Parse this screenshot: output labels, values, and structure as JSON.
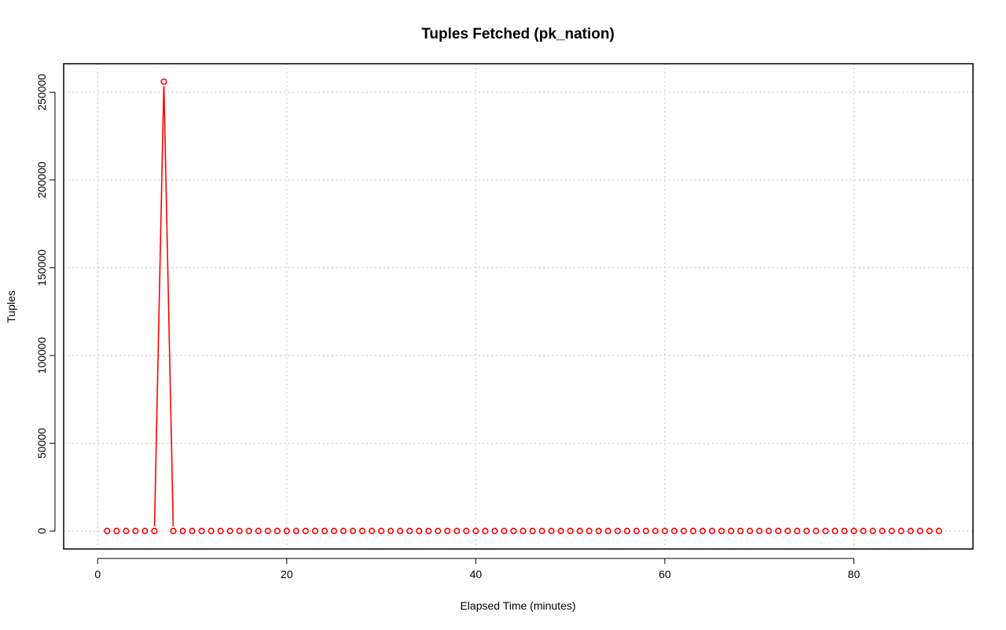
{
  "chart_data": {
    "type": "line",
    "title": "Tuples Fetched (pk_nation)",
    "xlabel": "Elapsed Time (minutes)",
    "ylabel": "Tuples",
    "xlim": [
      -3.6,
      92.6
    ],
    "ylim": [
      -10240,
      266240
    ],
    "x_ticks": [
      "0",
      "20",
      "40",
      "60",
      "80"
    ],
    "y_ticks": [
      "0",
      "50000",
      "100000",
      "150000",
      "200000",
      "250000"
    ],
    "grid": true,
    "series_color": "#ff0000",
    "grid_color": "#bebebe",
    "series": [
      {
        "x": [
          1,
          2,
          3,
          4,
          5,
          6,
          7,
          8,
          9,
          10,
          11,
          12,
          13,
          14,
          15,
          16,
          17,
          18,
          19,
          20,
          21,
          22,
          23,
          24,
          25,
          26,
          27,
          28,
          29,
          30,
          31,
          32,
          33,
          34,
          35,
          36,
          37,
          38,
          39,
          40,
          41,
          42,
          43,
          44,
          45,
          46,
          47,
          48,
          49,
          50,
          51,
          52,
          53,
          54,
          55,
          56,
          57,
          58,
          59,
          60,
          61,
          62,
          63,
          64,
          65,
          66,
          67,
          68,
          69,
          70,
          71,
          72,
          73,
          74,
          75,
          76,
          77,
          78,
          79,
          80,
          81,
          82,
          83,
          84,
          85,
          86,
          87,
          88,
          89
        ],
        "values": [
          0,
          0,
          0,
          0,
          0,
          0,
          256000,
          0,
          0,
          0,
          0,
          0,
          0,
          0,
          0,
          0,
          0,
          0,
          0,
          0,
          0,
          0,
          0,
          0,
          0,
          0,
          0,
          0,
          0,
          0,
          0,
          0,
          0,
          0,
          0,
          0,
          0,
          0,
          0,
          0,
          0,
          0,
          0,
          0,
          0,
          0,
          0,
          0,
          0,
          0,
          0,
          0,
          0,
          0,
          0,
          0,
          0,
          0,
          0,
          0,
          0,
          0,
          0,
          0,
          0,
          0,
          0,
          0,
          0,
          0,
          0,
          0,
          0,
          0,
          0,
          0,
          0,
          0,
          0,
          0,
          0,
          0,
          0,
          0,
          0,
          0,
          0,
          0,
          0
        ]
      }
    ]
  }
}
